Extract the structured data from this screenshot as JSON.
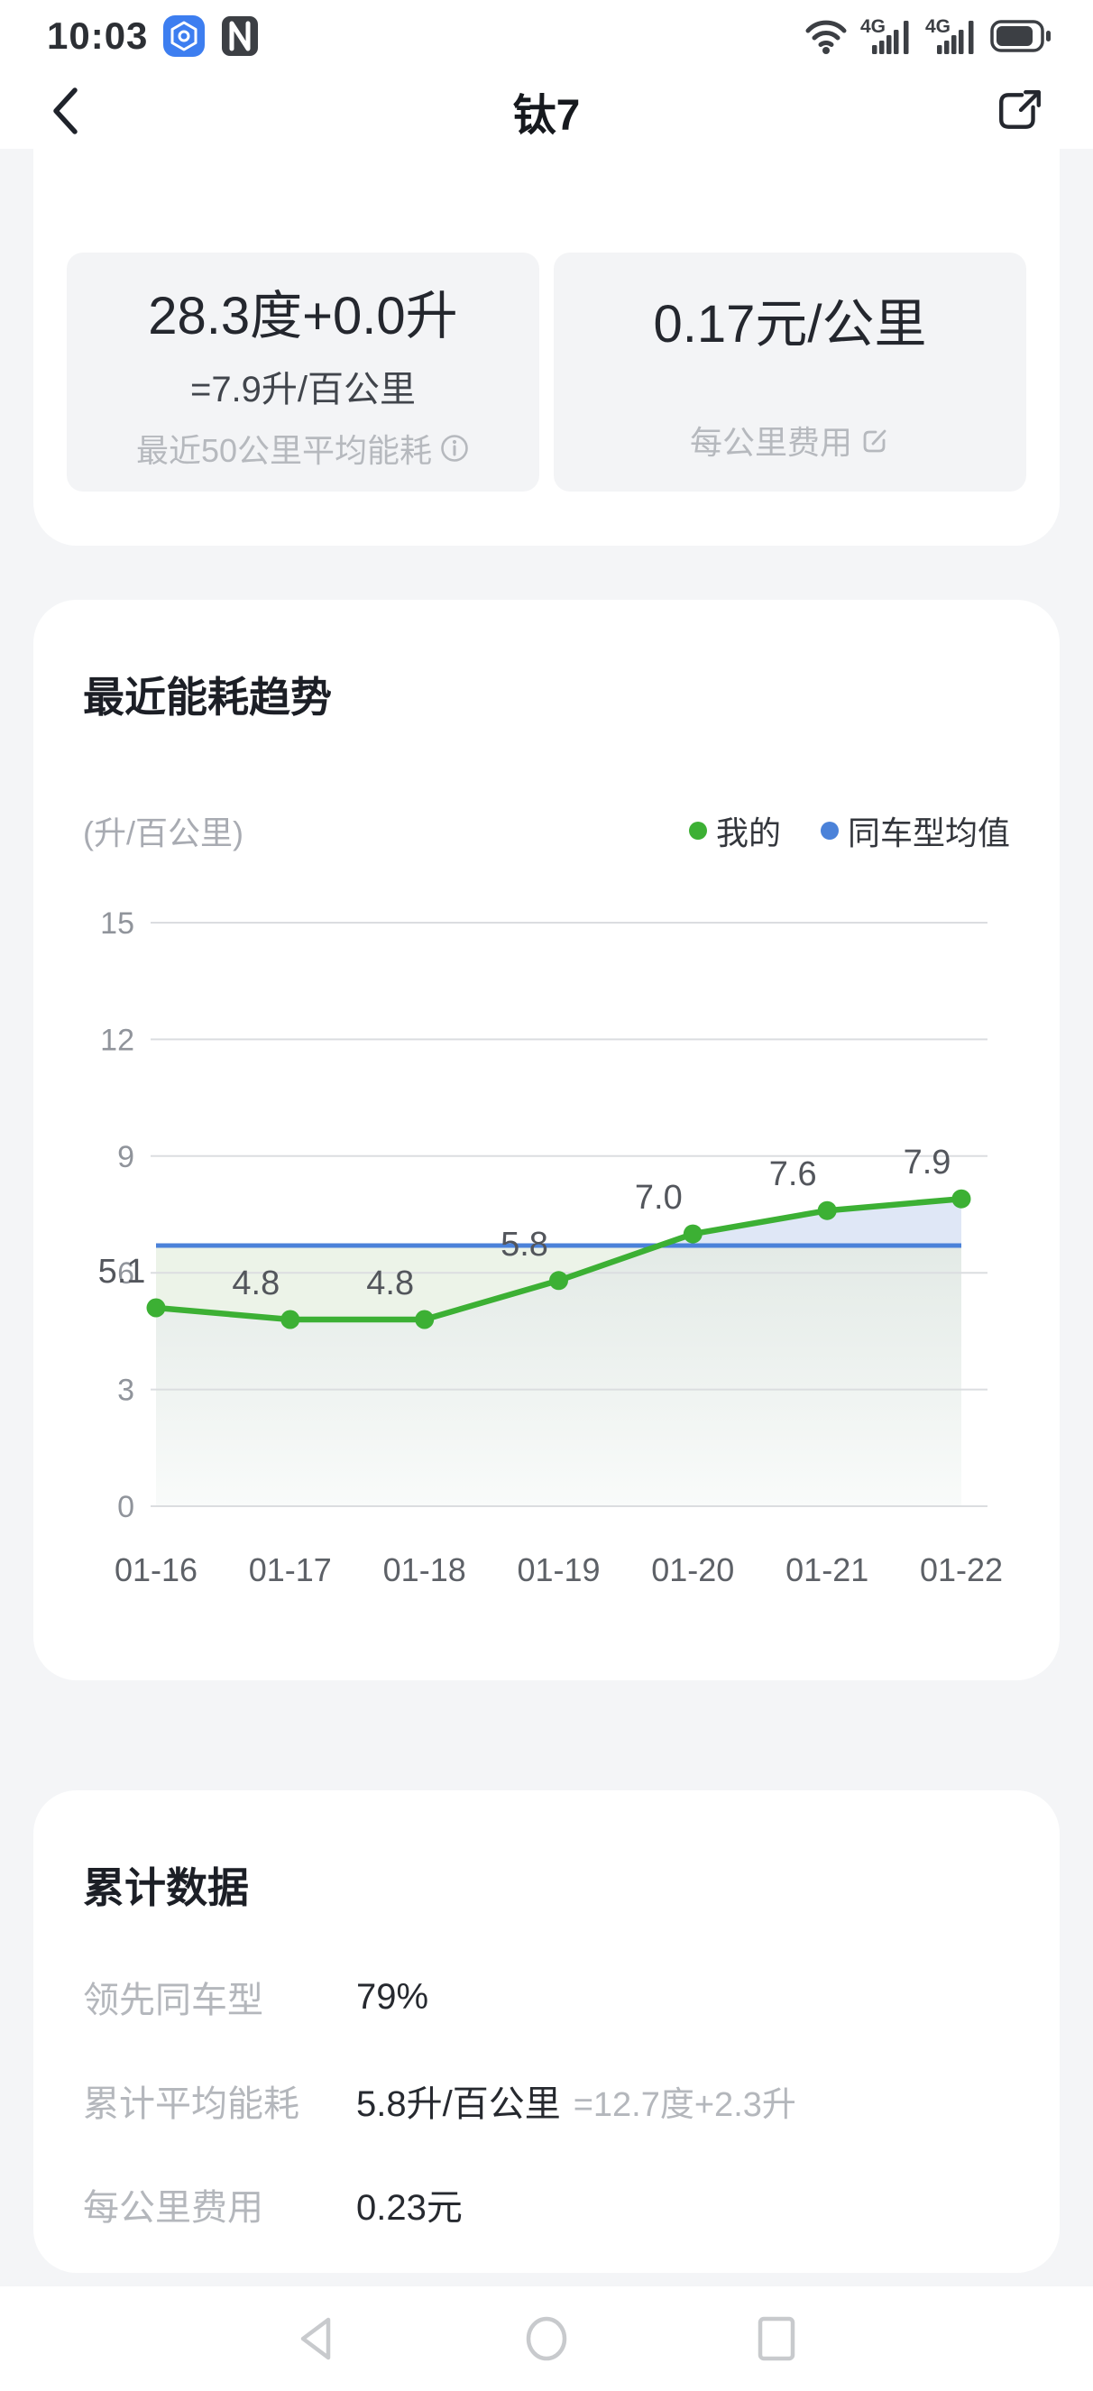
{
  "status_bar": {
    "time": "10:03"
  },
  "header": {
    "title": "钛7"
  },
  "summary_cards": {
    "energy": {
      "value": "28.3度+0.0升",
      "equivalent": "=7.9升/百公里",
      "caption": "最近50公里平均能耗"
    },
    "cost": {
      "value": "0.17元/公里",
      "caption": "每公里费用"
    }
  },
  "trend_section": {
    "title": "最近能耗趋势",
    "unit_label": "(升/百公里)",
    "legend": [
      {
        "label": "我的",
        "color": "#3cb034"
      },
      {
        "label": "同车型均值",
        "color": "#4b82d9"
      }
    ]
  },
  "chart_data": {
    "type": "line",
    "title": "最近能耗趋势",
    "categories": [
      "01-16",
      "01-17",
      "01-18",
      "01-19",
      "01-20",
      "01-21",
      "01-22"
    ],
    "series": [
      {
        "name": "我的",
        "color": "#3cb034",
        "values": [
          5.1,
          4.8,
          4.8,
          5.8,
          7.0,
          7.6,
          7.9
        ],
        "point_labels": [
          "5.1",
          "4.8",
          "4.8",
          "5.8",
          "7.0",
          "7.6",
          "7.9"
        ]
      },
      {
        "name": "同车型均值",
        "color": "#4b82d9",
        "values": [
          6.7,
          6.7,
          6.7,
          6.7,
          6.7,
          6.7,
          6.7
        ]
      }
    ],
    "xlabel": "",
    "ylabel": "(升/百公里)",
    "ylim": [
      0,
      15
    ],
    "yticks": [
      0,
      3,
      6,
      9,
      12,
      15
    ],
    "grid": true,
    "legend_position": "top-right",
    "colors": {
      "between_left": "#ecf3e8",
      "between_right": "#dfe7f6",
      "below_top": "#e3eae6",
      "below_bottom": "#f9fbfa",
      "gridline": "#dbdde0",
      "ytick_text": "#90949b",
      "xtick_text": "#5d6167",
      "point_label_text": "#53565c"
    }
  },
  "cumulative_section": {
    "title": "累计数据",
    "rows": [
      {
        "label": "领先同车型",
        "value": "79%",
        "extra": ""
      },
      {
        "label": "累计平均能耗",
        "value": "5.8升/百公里",
        "extra": "=12.7度+2.3升"
      },
      {
        "label": "每公里费用",
        "value": "0.23元",
        "extra": ""
      }
    ]
  },
  "system_nav": {
    "icons": [
      "back-triangle",
      "home-circle",
      "recents-square"
    ]
  }
}
